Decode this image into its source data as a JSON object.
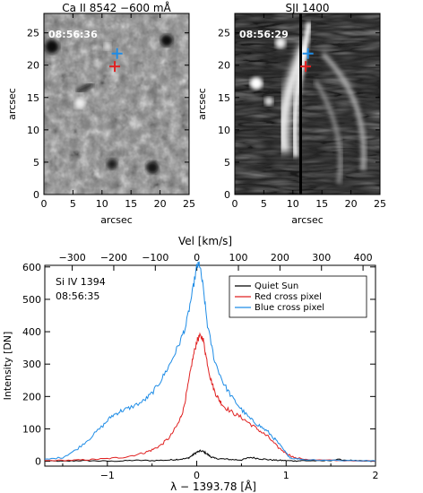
{
  "panels": [
    {
      "title": "Ca II 8542 −600 mÅ",
      "timestamp": "08:56:36",
      "xlabel": "arcsec",
      "ylabel": "arcsec",
      "xticks": [
        "0",
        "5",
        "10",
        "15",
        "20",
        "25"
      ],
      "yticks": [
        "0",
        "5",
        "10",
        "15",
        "20",
        "25"
      ],
      "xlim": [
        0,
        25
      ],
      "ylim": [
        0,
        28
      ],
      "markers": [
        {
          "name": "Blue cross pixel",
          "x": 12.6,
          "y": 21.8,
          "color": "#1e8ce6"
        },
        {
          "name": "Red cross pixel",
          "x": 12.2,
          "y": 19.8,
          "color": "#e02020"
        }
      ]
    },
    {
      "title": "SJI 1400",
      "timestamp": "08:56:29",
      "xlabel": "arcsec",
      "ylabel": "arcsec",
      "xticks": [
        "0",
        "5",
        "10",
        "15",
        "20",
        "25"
      ],
      "yticks": [
        "0",
        "5",
        "10",
        "15",
        "20",
        "25"
      ],
      "xlim": [
        0,
        25
      ],
      "ylim": [
        0,
        28
      ],
      "markers": [
        {
          "name": "Blue cross pixel",
          "x": 12.6,
          "y": 21.8,
          "color": "#1e8ce6"
        },
        {
          "name": "Red cross pixel",
          "x": 12.2,
          "y": 19.8,
          "color": "#e02020"
        }
      ]
    }
  ],
  "chart_data": {
    "type": "line",
    "annotation_line1": "Si IV 1394",
    "annotation_line2": "08:56:35",
    "xlabel": "λ − 1393.78 [Å]",
    "ylabel": "Intensity [DN]",
    "top_xlabel": "Vel [km/s]",
    "xlim": [
      -1.7,
      2.0
    ],
    "ylim": [
      -15,
      605
    ],
    "top_xlim": [
      -366,
      430
    ],
    "xticks": [
      -1,
      0,
      1,
      2
    ],
    "xtick_labels": [
      "−1",
      "0",
      "1",
      "2"
    ],
    "yticks": [
      0,
      100,
      200,
      300,
      400,
      500,
      600
    ],
    "ytick_labels": [
      "0",
      "100",
      "200",
      "300",
      "400",
      "500",
      "600"
    ],
    "top_xticks": [
      -300,
      -200,
      -100,
      0,
      100,
      200,
      300,
      400
    ],
    "top_xtick_labels": [
      "−300",
      "−200",
      "−100",
      "0",
      "100",
      "200",
      "300",
      "400"
    ],
    "legend_position": "top-right",
    "series": [
      {
        "name": "Quiet Sun",
        "color": "#000000",
        "x": [
          -1.7,
          -1.5,
          -1.3,
          -1.1,
          -0.9,
          -0.7,
          -0.5,
          -0.3,
          -0.2,
          -0.1,
          -0.05,
          0.0,
          0.05,
          0.1,
          0.15,
          0.2,
          0.3,
          0.4,
          0.5,
          0.6,
          0.7,
          0.8,
          0.9,
          1.0,
          1.1,
          1.2,
          1.4,
          1.6,
          1.8,
          2.0
        ],
        "values": [
          1,
          0,
          2,
          1,
          0,
          3,
          2,
          4,
          6,
          9,
          18,
          28,
          32,
          26,
          15,
          9,
          7,
          5,
          4,
          12,
          8,
          5,
          3,
          2,
          1,
          2,
          1,
          5,
          1,
          0
        ]
      },
      {
        "name": "Red cross pixel",
        "color": "#e02020",
        "x": [
          -1.7,
          -1.4,
          -1.2,
          -1.0,
          -0.8,
          -0.6,
          -0.5,
          -0.4,
          -0.3,
          -0.2,
          -0.15,
          -0.1,
          -0.05,
          0.0,
          0.03,
          0.07,
          0.1,
          0.15,
          0.2,
          0.25,
          0.3,
          0.4,
          0.5,
          0.6,
          0.7,
          0.8,
          0.9,
          1.0,
          1.1,
          1.3,
          1.6,
          2.0
        ],
        "values": [
          2,
          3,
          5,
          8,
          13,
          25,
          35,
          50,
          75,
          120,
          160,
          230,
          310,
          370,
          385,
          380,
          330,
          260,
          215,
          190,
          170,
          150,
          135,
          115,
          95,
          75,
          45,
          25,
          10,
          4,
          2,
          1
        ]
      },
      {
        "name": "Blue cross pixel",
        "color": "#1e8ce6",
        "x": [
          -1.7,
          -1.5,
          -1.35,
          -1.2,
          -1.05,
          -0.95,
          -0.85,
          -0.75,
          -0.6,
          -0.5,
          -0.4,
          -0.3,
          -0.2,
          -0.12,
          -0.05,
          0.0,
          0.03,
          0.07,
          0.12,
          0.2,
          0.3,
          0.4,
          0.5,
          0.6,
          0.7,
          0.8,
          0.9,
          1.0,
          1.05,
          1.2,
          1.5,
          1.8,
          2.0
        ],
        "values": [
          5,
          12,
          35,
          70,
          110,
          140,
          155,
          165,
          185,
          210,
          250,
          300,
          360,
          420,
          520,
          600,
          610,
          540,
          420,
          310,
          240,
          195,
          160,
          130,
          110,
          90,
          60,
          25,
          10,
          5,
          3,
          2,
          1
        ]
      }
    ]
  }
}
